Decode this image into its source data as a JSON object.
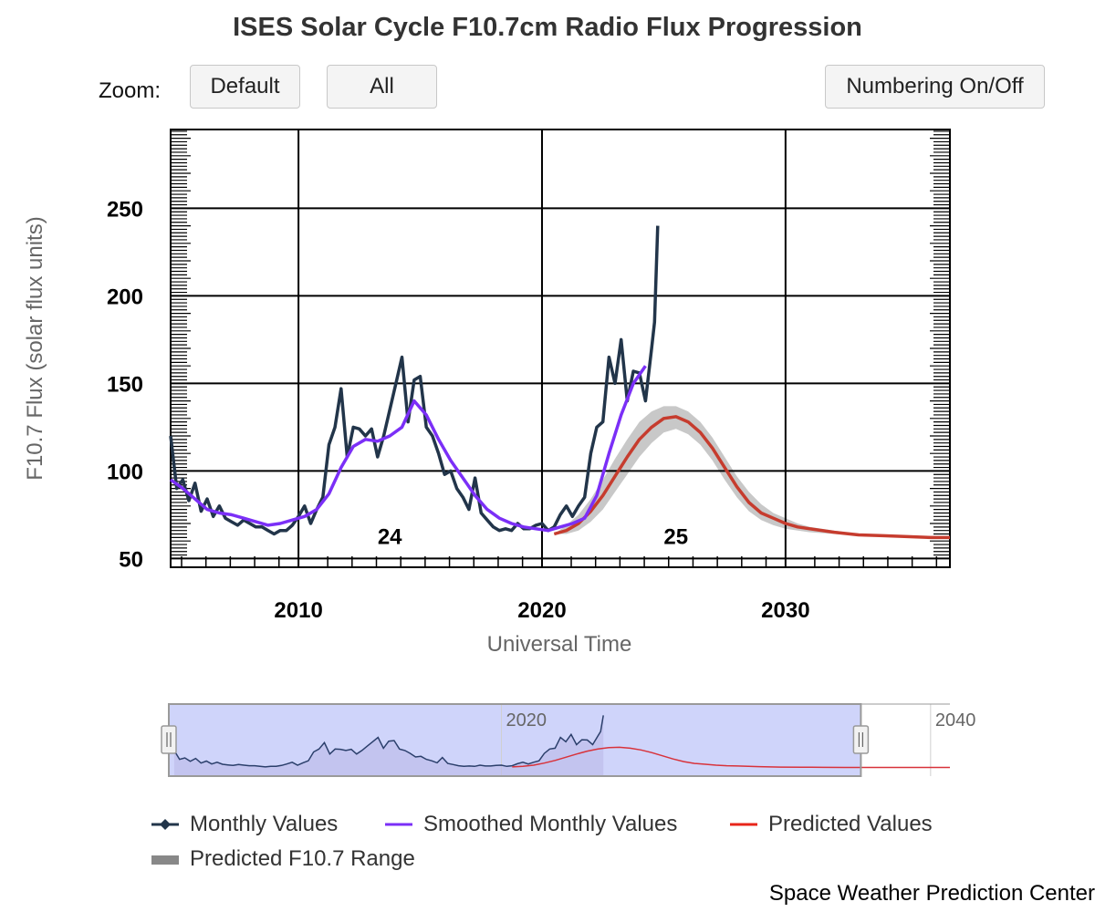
{
  "title": "ISES Solar Cycle F10.7cm Radio Flux Progression",
  "zoom": {
    "label": "Zoom:",
    "buttons": [
      "Default",
      "All"
    ]
  },
  "numbering_button": "Numbering On/Off",
  "footer": "Space Weather Prediction Center",
  "colors": {
    "monthly": "#22354a",
    "smoothed": "#7b2ff7",
    "predicted": "#c63c2e",
    "range": "#c8c8c8",
    "navigator_mask": "#cfd4fa"
  },
  "legend": [
    {
      "name": "Monthly Values",
      "symbol": "line-diamond"
    },
    {
      "name": "Smoothed Monthly Values",
      "symbol": "line"
    },
    {
      "name": "Predicted Values",
      "symbol": "line"
    },
    {
      "name": "Predicted F10.7 Range",
      "symbol": "bar"
    }
  ],
  "navigator": {
    "tick_labels": [
      "2020",
      "2040"
    ]
  },
  "chart_data": {
    "type": "line",
    "title": "ISES Solar Cycle F10.7cm Radio Flux Progression",
    "xlabel": "Universal Time",
    "ylabel": "F10.7 Flux (solar flux units)",
    "xlim": [
      2004.75,
      2036.75
    ],
    "ylim": [
      45,
      295
    ],
    "x_ticks": [
      2010,
      2020,
      2030
    ],
    "y_ticks": [
      50,
      100,
      150,
      200,
      250
    ],
    "grid": true,
    "legend_position": "bottom",
    "cycle_labels": [
      {
        "text": "24",
        "x": 2013.75,
        "y": 63
      },
      {
        "text": "25",
        "x": 2025.5,
        "y": 63
      }
    ],
    "series": [
      {
        "name": "Monthly Values",
        "x": [
          2004.75,
          2005.0,
          2005.25,
          2005.5,
          2005.75,
          2006.0,
          2006.25,
          2006.5,
          2006.75,
          2007.0,
          2007.25,
          2007.5,
          2007.75,
          2008.0,
          2008.25,
          2008.5,
          2008.75,
          2009.0,
          2009.25,
          2009.5,
          2009.75,
          2010.0,
          2010.25,
          2010.5,
          2010.75,
          2011.0,
          2011.25,
          2011.5,
          2011.75,
          2012.0,
          2012.25,
          2012.5,
          2012.75,
          2013.0,
          2013.25,
          2013.5,
          2013.75,
          2014.0,
          2014.25,
          2014.5,
          2014.75,
          2015.0,
          2015.25,
          2015.5,
          2015.75,
          2016.0,
          2016.25,
          2016.5,
          2016.75,
          2017.0,
          2017.25,
          2017.5,
          2017.75,
          2018.0,
          2018.25,
          2018.5,
          2018.75,
          2019.0,
          2019.25,
          2019.5,
          2019.75,
          2020.0,
          2020.25,
          2020.5,
          2020.75,
          2021.0,
          2021.25,
          2021.5,
          2021.75,
          2022.0,
          2022.25,
          2022.5,
          2022.75,
          2023.0,
          2023.25,
          2023.5,
          2023.75,
          2024.0,
          2024.25,
          2024.5,
          2024.62,
          2024.75
        ],
        "values": [
          120,
          90,
          95,
          83,
          93,
          77,
          84,
          74,
          80,
          73,
          71,
          69,
          72,
          70,
          68,
          68,
          66,
          64,
          66,
          66,
          69,
          74,
          80,
          70,
          78,
          85,
          115,
          125,
          147,
          108,
          125,
          124,
          120,
          124,
          108,
          120,
          135,
          150,
          165,
          128,
          152,
          154,
          125,
          120,
          110,
          98,
          100,
          90,
          85,
          78,
          96,
          76,
          72,
          68,
          66,
          67,
          66,
          70,
          67,
          67,
          69,
          70,
          66,
          68,
          75,
          80,
          74,
          80,
          85,
          110,
          125,
          128,
          165,
          150,
          175,
          140,
          157,
          156,
          140,
          170,
          185,
          240
        ]
      },
      {
        "name": "Smoothed Monthly Values",
        "x": [
          2004.75,
          2005.25,
          2005.75,
          2006.25,
          2006.75,
          2007.25,
          2007.75,
          2008.25,
          2008.75,
          2009.25,
          2009.75,
          2010.25,
          2010.75,
          2011.25,
          2011.75,
          2012.25,
          2012.75,
          2013.25,
          2013.75,
          2014.25,
          2014.75,
          2015.25,
          2015.75,
          2016.25,
          2016.75,
          2017.25,
          2017.75,
          2018.25,
          2018.75,
          2019.25,
          2019.75,
          2020.25,
          2020.75,
          2021.25,
          2021.75,
          2022.25,
          2022.75,
          2023.25,
          2023.75,
          2024.25
        ],
        "values": [
          95,
          90,
          84,
          78,
          76,
          75,
          73,
          71,
          69,
          70,
          72,
          74,
          78,
          87,
          102,
          114,
          118,
          117,
          120,
          125,
          140,
          132,
          118,
          106,
          96,
          86,
          78,
          73,
          70,
          68,
          67,
          66,
          68,
          70,
          73,
          86,
          110,
          132,
          150,
          160
        ]
      },
      {
        "name": "Predicted Values",
        "x": [
          2020.5,
          2021.0,
          2021.5,
          2022.0,
          2022.5,
          2023.0,
          2023.5,
          2024.0,
          2024.5,
          2025.0,
          2025.5,
          2026.0,
          2026.5,
          2027.0,
          2027.5,
          2028.0,
          2028.5,
          2029.0,
          2029.5,
          2030.0,
          2030.5,
          2031.0,
          2032.0,
          2033.0,
          2034.0,
          2035.0,
          2036.0,
          2036.75
        ],
        "values": [
          64,
          66,
          70,
          77,
          86,
          97,
          108,
          118,
          125,
          130,
          131,
          128,
          122,
          113,
          102,
          91,
          82,
          76,
          73,
          70,
          68,
          67,
          65,
          63.5,
          63,
          62.5,
          62,
          62
        ]
      },
      {
        "name": "Predicted F10.7 Range",
        "x": [
          2020.5,
          2021.0,
          2021.5,
          2022.0,
          2022.5,
          2023.0,
          2023.5,
          2024.0,
          2024.5,
          2025.0,
          2025.5,
          2026.0,
          2026.5,
          2027.0,
          2027.5,
          2028.0,
          2028.5,
          2029.0,
          2029.5,
          2030.0,
          2030.5,
          2031.0,
          2032.0,
          2033.0,
          2034.0,
          2035.0,
          2036.0,
          2036.75
        ],
        "upper": [
          64,
          69,
          75,
          84,
          95,
          107,
          118,
          128,
          134,
          137,
          137,
          134,
          128,
          119,
          108,
          97,
          88,
          81,
          76,
          73,
          70,
          68,
          66,
          64,
          63.5,
          63,
          62.5,
          62.5
        ],
        "lower": [
          64,
          64,
          66,
          71,
          78,
          88,
          98,
          108,
          116,
          122,
          124,
          121,
          115,
          106,
          95,
          85,
          77,
          72,
          69,
          67,
          66,
          65,
          64,
          63,
          62.5,
          62,
          61.5,
          61.5
        ]
      }
    ]
  }
}
